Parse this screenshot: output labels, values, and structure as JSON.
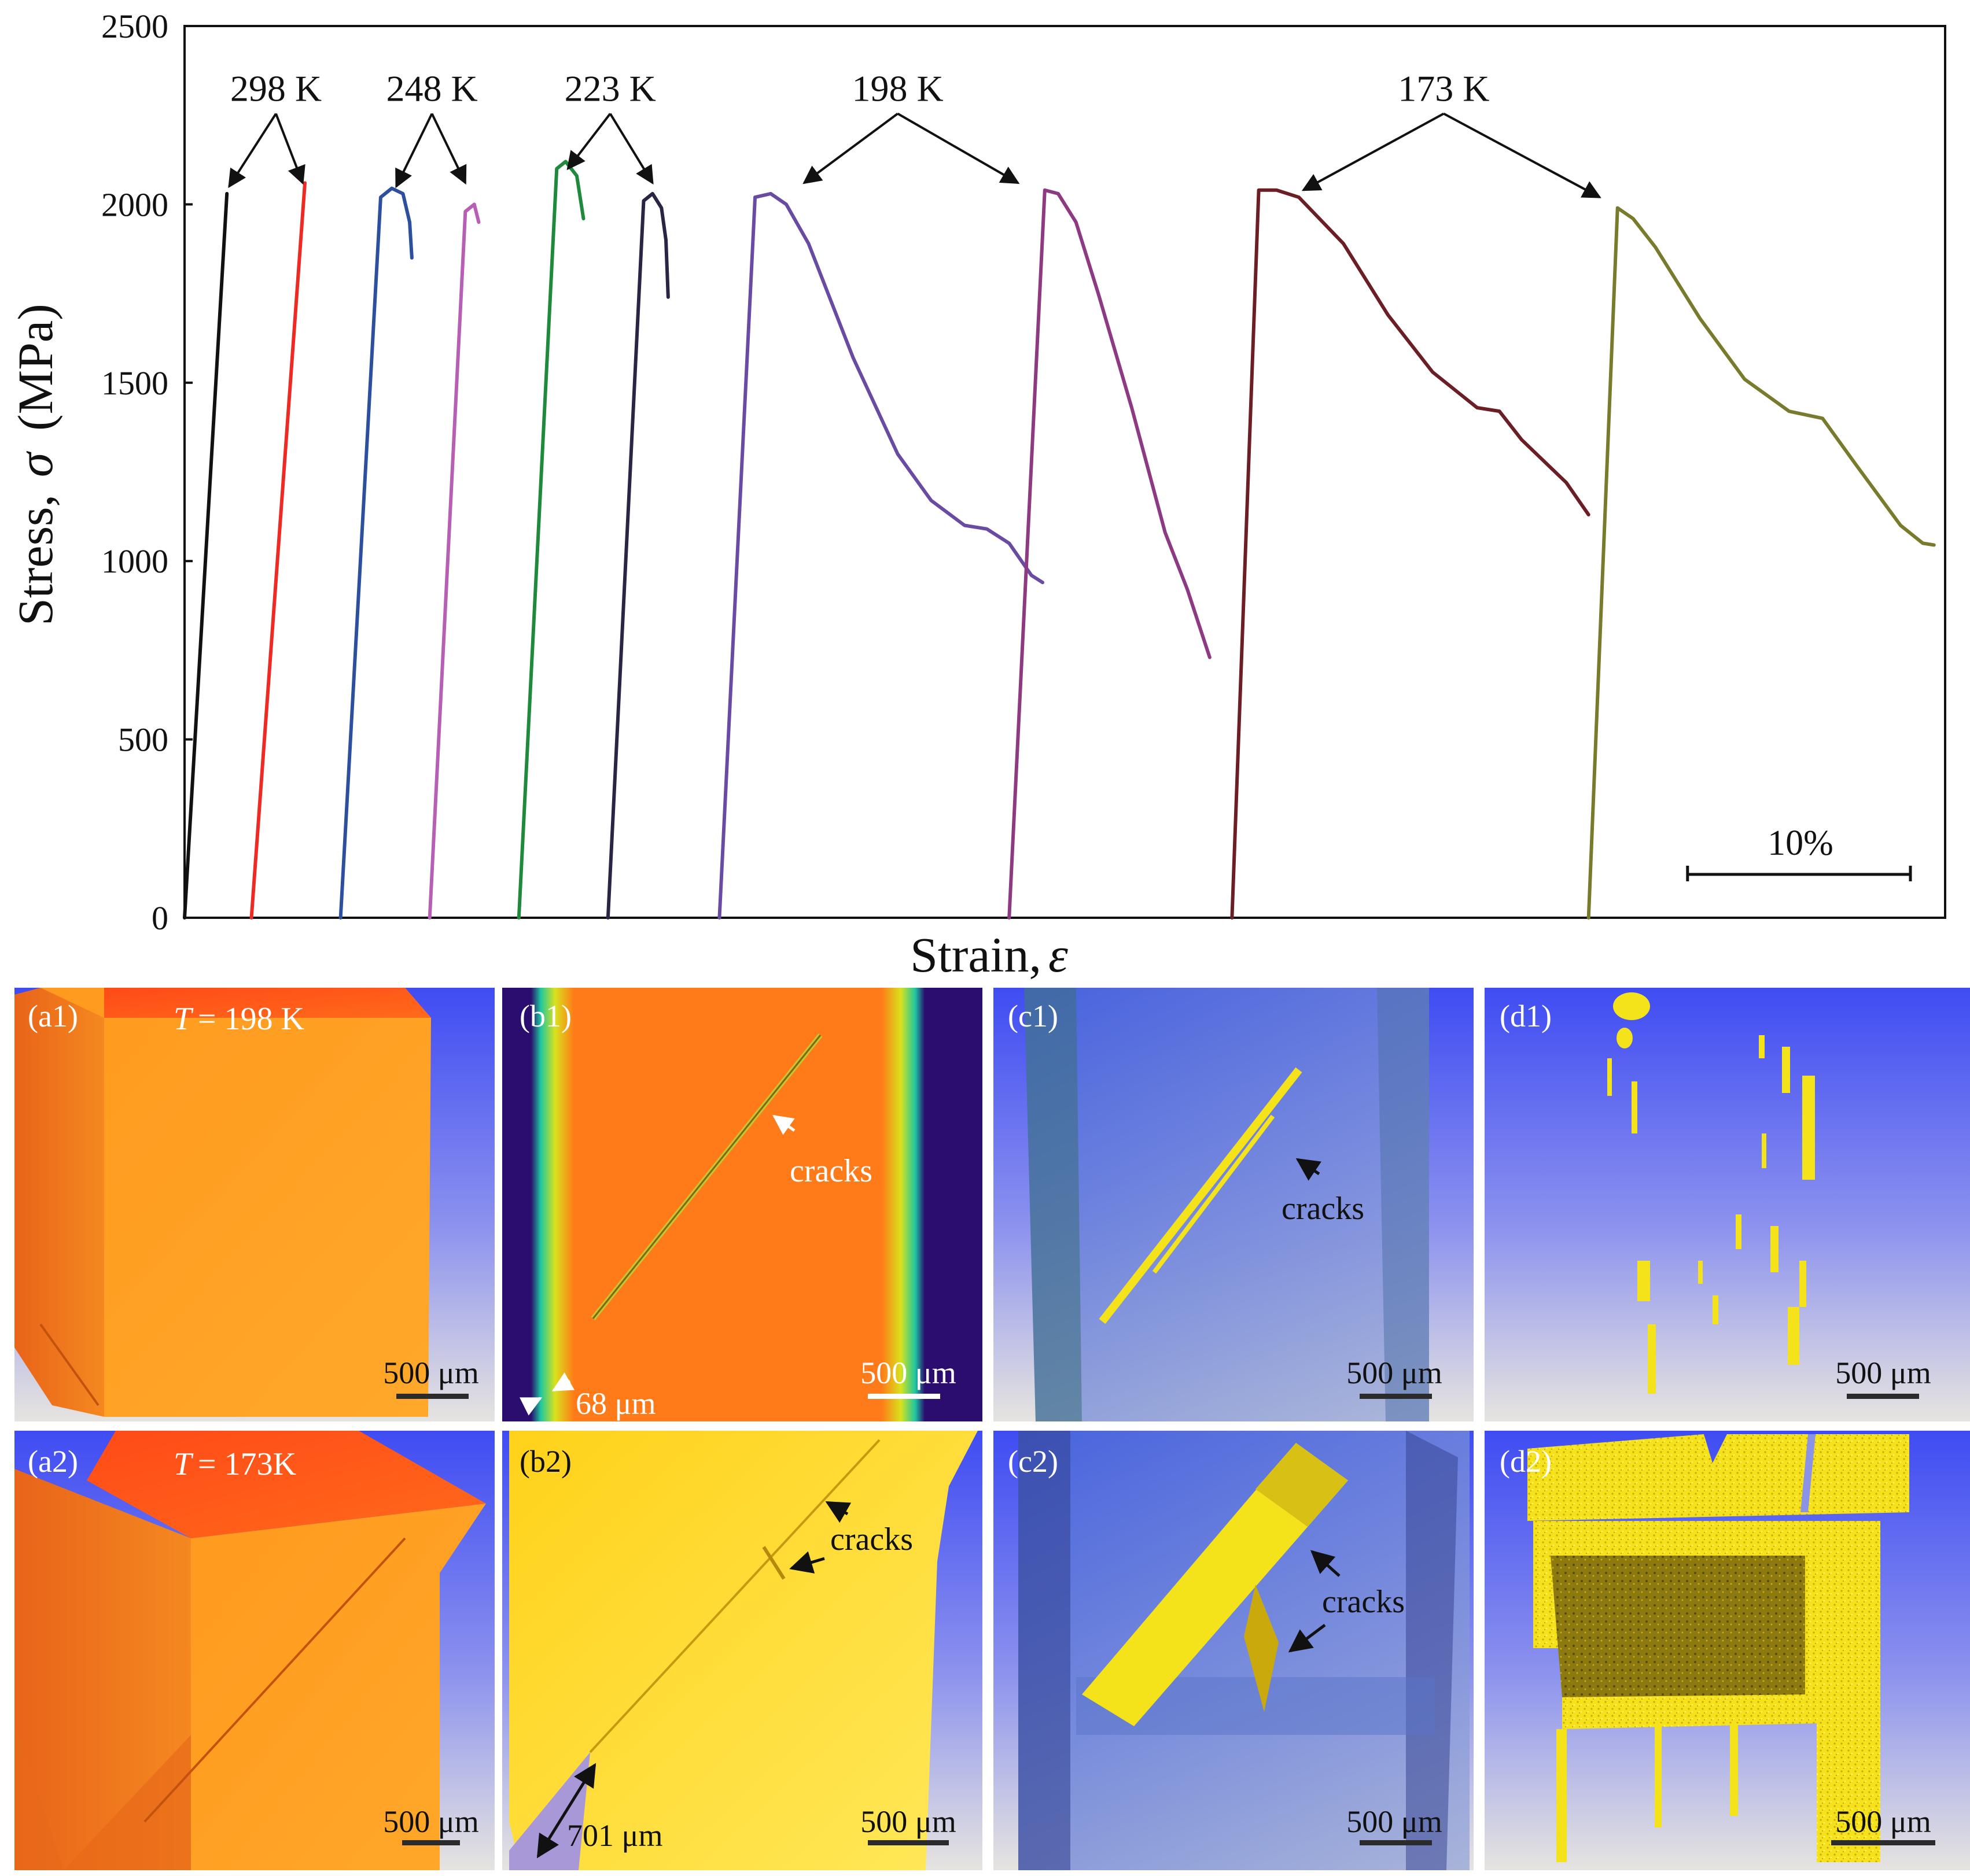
{
  "chart_data": {
    "type": "line",
    "title": "",
    "xlabel": "Strain,",
    "xlabel_symbol": "ε",
    "ylabel": "Stress,",
    "ylabel_symbol": "σ",
    "ylabel_unit": "(MPa)",
    "ylim": [
      0,
      2500
    ],
    "yticks": [
      "0",
      "500",
      "1000",
      "1500",
      "2000",
      "2500"
    ],
    "x_unit": "strain %",
    "xlim": [
      0,
      79
    ],
    "scale_bar_label": "10%",
    "scale_bar_value": 10,
    "groups": [
      {
        "label": "298 K",
        "label_x": 4.1,
        "label_y": 2290,
        "arrow_targets": [
          [
            2.0,
            2050
          ],
          [
            5.3,
            2060
          ]
        ]
      },
      {
        "label": "248 K",
        "label_x": 11.1,
        "label_y": 2290,
        "arrow_targets": [
          [
            9.5,
            2050
          ],
          [
            12.6,
            2060
          ]
        ]
      },
      {
        "label": "223 K",
        "label_x": 19.1,
        "label_y": 2290,
        "arrow_targets": [
          [
            17.2,
            2100
          ],
          [
            21.0,
            2060
          ]
        ]
      },
      {
        "label": "198 K",
        "label_x": 32.0,
        "label_y": 2290,
        "arrow_targets": [
          [
            27.8,
            2060
          ],
          [
            37.4,
            2060
          ]
        ]
      },
      {
        "label": "173 K",
        "label_x": 56.5,
        "label_y": 2290,
        "arrow_targets": [
          [
            50.2,
            2040
          ],
          [
            63.5,
            2020
          ]
        ]
      }
    ],
    "series": [
      {
        "name": "298 K (1)",
        "color": "#111111",
        "points": [
          [
            0,
            0
          ],
          [
            1.9,
            2030
          ]
        ]
      },
      {
        "name": "298 K (2)",
        "color": "#ee2a24",
        "points": [
          [
            3.0,
            0
          ],
          [
            5.4,
            2060
          ]
        ]
      },
      {
        "name": "248 K (1)",
        "color": "#2c4f9e",
        "points": [
          [
            7.0,
            0
          ],
          [
            8.8,
            2020
          ],
          [
            9.3,
            2045
          ],
          [
            9.8,
            2030
          ],
          [
            10.1,
            1950
          ],
          [
            10.2,
            1850
          ]
        ]
      },
      {
        "name": "248 K (2)",
        "color": "#b75fb4",
        "points": [
          [
            11.0,
            0
          ],
          [
            12.6,
            1980
          ],
          [
            13.0,
            2000
          ],
          [
            13.2,
            1950
          ]
        ]
      },
      {
        "name": "223 K (1)",
        "color": "#1f8a3b",
        "points": [
          [
            15.0,
            0
          ],
          [
            16.7,
            2100
          ],
          [
            17.1,
            2120
          ],
          [
            17.6,
            2080
          ],
          [
            17.9,
            1960
          ]
        ]
      },
      {
        "name": "223 K (2)",
        "color": "#2b2445",
        "points": [
          [
            19.0,
            0
          ],
          [
            20.6,
            2010
          ],
          [
            21.0,
            2030
          ],
          [
            21.4,
            1990
          ],
          [
            21.6,
            1900
          ],
          [
            21.7,
            1740
          ]
        ]
      },
      {
        "name": "198 K (1)",
        "color": "#6a4ba3",
        "points": [
          [
            24.0,
            0
          ],
          [
            25.6,
            2020
          ],
          [
            26.3,
            2030
          ],
          [
            27.0,
            2000
          ],
          [
            28.0,
            1890
          ],
          [
            30.0,
            1570
          ],
          [
            32.0,
            1300
          ],
          [
            33.5,
            1170
          ],
          [
            35.0,
            1100
          ],
          [
            36.0,
            1090
          ],
          [
            37.0,
            1050
          ],
          [
            38.0,
            960
          ],
          [
            38.5,
            940
          ]
        ]
      },
      {
        "name": "198 K (2)",
        "color": "#8e3a82",
        "points": [
          [
            37.0,
            0
          ],
          [
            38.6,
            2040
          ],
          [
            39.2,
            2030
          ],
          [
            40.0,
            1950
          ],
          [
            41.0,
            1750
          ],
          [
            42.5,
            1430
          ],
          [
            44.0,
            1080
          ],
          [
            45.0,
            920
          ],
          [
            46.0,
            730
          ]
        ]
      },
      {
        "name": "173 K (1)",
        "color": "#6b1e24",
        "points": [
          [
            47.0,
            0
          ],
          [
            48.2,
            2040
          ],
          [
            49.0,
            2040
          ],
          [
            50.0,
            2020
          ],
          [
            52.0,
            1890
          ],
          [
            54.0,
            1690
          ],
          [
            56.0,
            1530
          ],
          [
            58.0,
            1430
          ],
          [
            59.0,
            1420
          ],
          [
            60.0,
            1340
          ],
          [
            62.0,
            1220
          ],
          [
            63.0,
            1130
          ]
        ]
      },
      {
        "name": "173 K (2)",
        "color": "#787a2c",
        "points": [
          [
            63.0,
            0
          ],
          [
            64.3,
            1990
          ],
          [
            65.0,
            1960
          ],
          [
            66.0,
            1880
          ],
          [
            68.0,
            1680
          ],
          [
            70.0,
            1510
          ],
          [
            72.0,
            1420
          ],
          [
            73.5,
            1400
          ],
          [
            75.0,
            1270
          ],
          [
            77.0,
            1100
          ],
          [
            78.0,
            1050
          ],
          [
            78.5,
            1045
          ]
        ]
      }
    ]
  },
  "panels": [
    {
      "id": "a1",
      "label": "(a1)",
      "temp_label": "T",
      "temp_value": "= 198 K",
      "scale": "500 μm"
    },
    {
      "id": "b1",
      "label": "(b1)",
      "annotation": "cracks",
      "measure": "68 μm",
      "scale": "500 μm"
    },
    {
      "id": "c1",
      "label": "(c1)",
      "annotation": "cracks",
      "scale": "500 μm"
    },
    {
      "id": "d1",
      "label": "(d1)",
      "scale": "500 μm"
    },
    {
      "id": "a2",
      "label": "(a2)",
      "temp_label": "T",
      "temp_value": "= 173K",
      "scale": "500 μm"
    },
    {
      "id": "b2",
      "label": "(b2)",
      "annotation": "cracks",
      "measure": "701 μm",
      "scale": "500 μm"
    },
    {
      "id": "c2",
      "label": "(c2)",
      "annotation": "cracks",
      "scale": "500 μm"
    },
    {
      "id": "d2",
      "label": "(d2)",
      "scale": "500 μm"
    }
  ]
}
